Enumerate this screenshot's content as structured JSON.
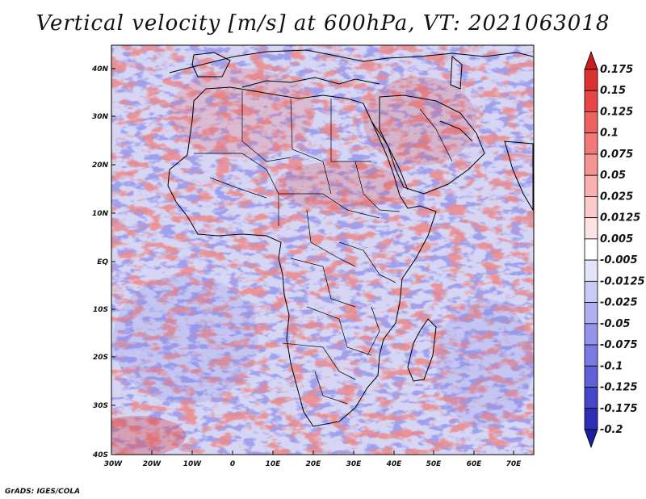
{
  "title": "Vertical velocity [m/s] at 600hPa, VT: 2021063018",
  "footer": "GrADS: IGES/COLA",
  "map": {
    "lat_labels": [
      "40N",
      "30N",
      "20N",
      "10N",
      "EQ",
      "10S",
      "20S",
      "30S",
      "40S"
    ],
    "lon_labels": [
      "30W",
      "20W",
      "10W",
      "0",
      "10E",
      "20E",
      "30E",
      "40E",
      "50E",
      "60E",
      "70E"
    ]
  },
  "colorbar": {
    "levels": [
      "0.175",
      "0.15",
      "0.125",
      "0.1",
      "0.075",
      "0.05",
      "0.025",
      "0.0125",
      "0.005",
      "-0.005",
      "-0.0125",
      "-0.025",
      "-0.05",
      "-0.075",
      "-0.1",
      "-0.125",
      "-0.175",
      "-0.2"
    ],
    "colors": [
      "#c81e1e",
      "#dc3232",
      "#e84646",
      "#f06262",
      "#f27a7a",
      "#f59494",
      "#f8b0b0",
      "#fbcaca",
      "#fde4e4",
      "#ffffff",
      "#e4e4fb",
      "#cacaf6",
      "#b0b0f0",
      "#9494ea",
      "#7a7ae2",
      "#6060d8",
      "#4646c8",
      "#2e2eb4",
      "#1e1ea0"
    ]
  },
  "palette": {
    "ocean_base": "#d6d6f4",
    "land_base": "#e2ddee",
    "border": "#000000"
  }
}
